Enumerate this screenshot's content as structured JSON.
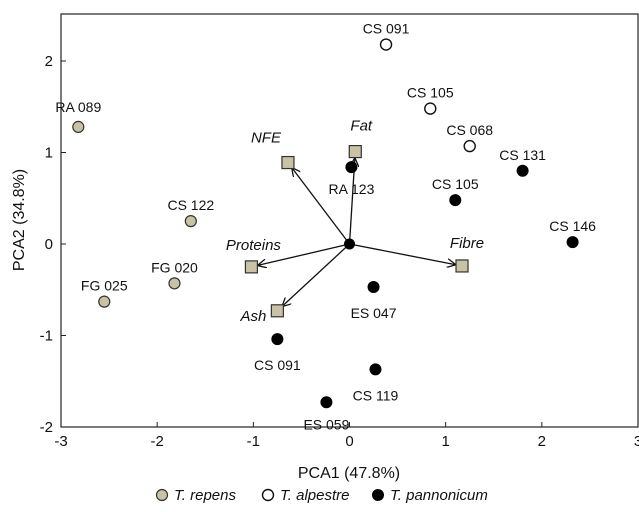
{
  "chart_data": {
    "type": "scatter",
    "subtype": "pca-biplot",
    "title": "",
    "xlabel": "PCA1 (47.8%)",
    "ylabel": "PCA2 (34.8%)",
    "xlim": [
      -3,
      3
    ],
    "ylim": [
      -2,
      2.5
    ],
    "xticks": [
      -3,
      -2,
      -1,
      0,
      1,
      2,
      3
    ],
    "yticks": [
      -2,
      -1,
      0,
      1,
      2
    ],
    "grid": false,
    "legend_position": "bottom",
    "colors": {
      "T. repens": "#c9c2a4",
      "T. alpestre": "#ffffff",
      "T. pannonicum": "#000000",
      "loading_marker": "#c9c2a4"
    },
    "series": [
      {
        "name": "T. repens",
        "marker": "filled-light-circle",
        "points": [
          {
            "label": "RA 089",
            "x": -2.82,
            "y": 1.28
          },
          {
            "label": "CS 122",
            "x": -1.65,
            "y": 0.25
          },
          {
            "label": "FG 020",
            "x": -1.82,
            "y": -0.43
          },
          {
            "label": "FG 025",
            "x": -2.55,
            "y": -0.63
          }
        ]
      },
      {
        "name": "T. alpestre",
        "marker": "open-circle",
        "points": [
          {
            "label": "CS 091",
            "x": 0.38,
            "y": 2.18
          },
          {
            "label": "CS 105",
            "x": 0.84,
            "y": 1.48
          },
          {
            "label": "CS 068",
            "x": 1.25,
            "y": 1.07
          }
        ]
      },
      {
        "name": "T. pannonicum",
        "marker": "filled-black-circle",
        "points": [
          {
            "label": "RA 123",
            "x": 0.02,
            "y": 0.84
          },
          {
            "label": "CS 131",
            "x": 1.8,
            "y": 0.8
          },
          {
            "label": "CS 105",
            "x": 1.1,
            "y": 0.48
          },
          {
            "label": "CS 146",
            "x": 2.32,
            "y": 0.02
          },
          {
            "label": "ES 047",
            "x": 0.25,
            "y": -0.47
          },
          {
            "label": "CS 091",
            "x": -0.75,
            "y": -1.04
          },
          {
            "label": "CS 119",
            "x": 0.27,
            "y": -1.37
          },
          {
            "label": "ES 059",
            "x": -0.24,
            "y": -1.73
          }
        ]
      }
    ],
    "loadings": [
      {
        "label": "NFE",
        "x": -0.64,
        "y": 0.89
      },
      {
        "label": "Fat",
        "x": 0.06,
        "y": 1.01
      },
      {
        "label": "Proteins",
        "x": -1.02,
        "y": -0.25
      },
      {
        "label": "Fibre",
        "x": 1.17,
        "y": -0.24
      },
      {
        "label": "Ash",
        "x": -0.75,
        "y": -0.73
      }
    ],
    "legend": [
      {
        "label": "T. repens",
        "marker": "filled-light-circle"
      },
      {
        "label": "T. alpestre",
        "marker": "open-circle"
      },
      {
        "label": "T. pannonicum",
        "marker": "filled-black-circle"
      }
    ]
  }
}
